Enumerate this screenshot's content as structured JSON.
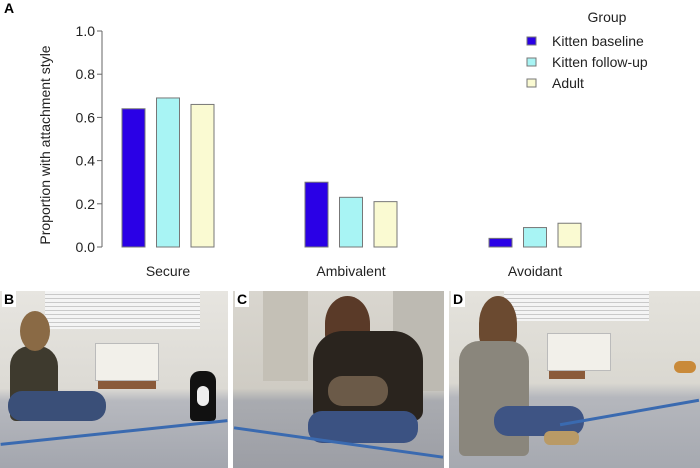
{
  "panels": {
    "a": "A",
    "b": "B",
    "c": "C",
    "d": "D"
  },
  "chart_data": {
    "type": "bar",
    "title": "",
    "xlabel": "",
    "ylabel": "Proportion with attachment style",
    "ylim": [
      0,
      1.0
    ],
    "yticks": [
      "0.0",
      "0.2",
      "0.4",
      "0.6",
      "0.8",
      "1.0"
    ],
    "categories": [
      "Secure",
      "Ambivalent",
      "Avoidant"
    ],
    "legend_title": "Group",
    "legend_position": "top-right",
    "grid": false,
    "series": [
      {
        "name": "Kitten baseline",
        "color": "#2a00e6",
        "values": [
          0.64,
          0.3,
          0.04
        ]
      },
      {
        "name": "Kitten follow-up",
        "color": "#a8f4f4",
        "values": [
          0.69,
          0.23,
          0.09
        ]
      },
      {
        "name": "Adult",
        "color": "#fafad2",
        "values": [
          0.66,
          0.21,
          0.11
        ]
      }
    ]
  }
}
